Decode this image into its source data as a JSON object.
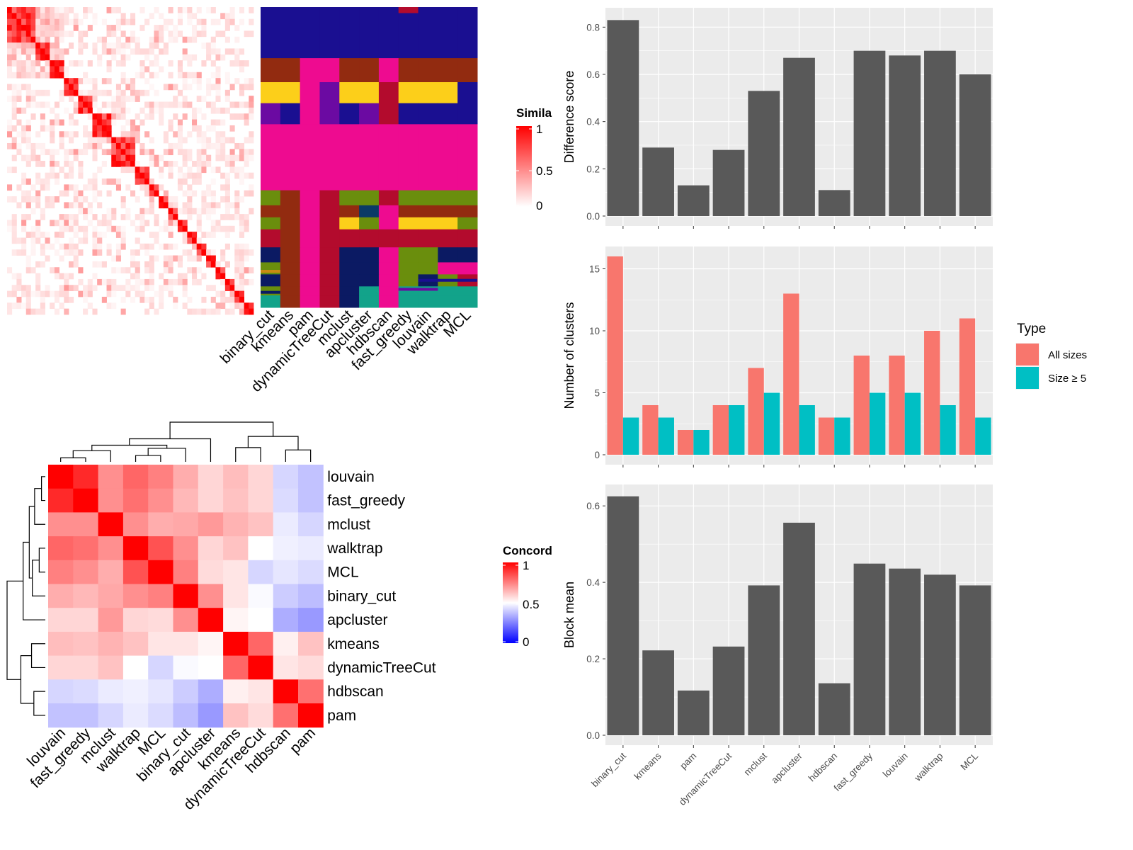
{
  "chart_data": [
    {
      "type": "heatmap",
      "name": "similarity-heatmap",
      "legend_title": "Simila",
      "legend_ticks": [
        "1",
        "0.5",
        "0"
      ],
      "scale": {
        "min": 0,
        "max": 1,
        "colors": [
          "#ffffff",
          "#ff0000"
        ]
      }
    },
    {
      "type": "heatmap",
      "name": "cluster-assignment-heatmap",
      "column_labels": [
        "binary_cut",
        "kmeans",
        "pam",
        "dynamicTreeCut",
        "mclust",
        "apcluster",
        "hdbscan",
        "fast_greedy",
        "louvain",
        "walktrap",
        "MCL"
      ]
    },
    {
      "type": "heatmap",
      "name": "concordance-heatmap",
      "legend_title": "Concord",
      "legend_ticks": [
        "1",
        "0.5",
        "0"
      ],
      "scale": {
        "min": 0,
        "max": 1,
        "colors": [
          "#0000ff",
          "#ffffff",
          "#ff0000"
        ]
      },
      "row_labels": [
        "louvain",
        "fast_greedy",
        "mclust",
        "walktrap",
        "MCL",
        "binary_cut",
        "apcluster",
        "kmeans",
        "dynamicTreeCut",
        "hdbscan",
        "pam"
      ],
      "column_labels": [
        "louvain",
        "fast_greedy",
        "mclust",
        "walktrap",
        "MCL",
        "binary_cut",
        "apcluster",
        "kmeans",
        "dynamicTreeCut",
        "hdbscan",
        "pam"
      ],
      "values": [
        [
          1.0,
          0.92,
          0.72,
          0.8,
          0.75,
          0.66,
          0.58,
          0.63,
          0.58,
          0.42,
          0.38
        ],
        [
          0.92,
          1.0,
          0.72,
          0.78,
          0.72,
          0.64,
          0.58,
          0.62,
          0.58,
          0.43,
          0.38
        ],
        [
          0.72,
          0.72,
          1.0,
          0.72,
          0.66,
          0.67,
          0.7,
          0.65,
          0.62,
          0.46,
          0.42
        ],
        [
          0.8,
          0.78,
          0.72,
          1.0,
          0.84,
          0.72,
          0.58,
          0.62,
          0.5,
          0.47,
          0.46
        ],
        [
          0.75,
          0.72,
          0.66,
          0.84,
          1.0,
          0.75,
          0.57,
          0.55,
          0.42,
          0.45,
          0.43
        ],
        [
          0.66,
          0.64,
          0.67,
          0.72,
          0.75,
          1.0,
          0.72,
          0.55,
          0.49,
          0.4,
          0.37
        ],
        [
          0.58,
          0.58,
          0.7,
          0.58,
          0.57,
          0.72,
          1.0,
          0.52,
          0.5,
          0.34,
          0.3
        ],
        [
          0.63,
          0.62,
          0.65,
          0.62,
          0.55,
          0.55,
          0.52,
          1.0,
          0.8,
          0.53,
          0.62
        ],
        [
          0.58,
          0.58,
          0.62,
          0.5,
          0.42,
          0.49,
          0.5,
          0.8,
          1.0,
          0.55,
          0.57
        ],
        [
          0.42,
          0.43,
          0.46,
          0.47,
          0.45,
          0.4,
          0.34,
          0.53,
          0.55,
          1.0,
          0.78
        ],
        [
          0.38,
          0.38,
          0.42,
          0.46,
          0.43,
          0.37,
          0.3,
          0.62,
          0.57,
          0.78,
          1.0
        ]
      ]
    },
    {
      "type": "bar",
      "name": "difference-score",
      "categories": [
        "binary_cut",
        "kmeans",
        "pam",
        "dynamicTreeCut",
        "mclust",
        "apcluster",
        "hdbscan",
        "fast_greedy",
        "louvain",
        "walktrap",
        "MCL"
      ],
      "values": [
        0.83,
        0.29,
        0.13,
        0.28,
        0.53,
        0.67,
        0.11,
        0.7,
        0.68,
        0.7,
        0.6
      ],
      "ylabel": "Difference score",
      "ylim": [
        0,
        0.84
      ],
      "yticks": [
        "0.0",
        "0.2",
        "0.4",
        "0.6",
        "0.8"
      ],
      "grid": true
    },
    {
      "type": "bar",
      "name": "number-of-clusters",
      "categories": [
        "binary_cut",
        "kmeans",
        "pam",
        "dynamicTreeCut",
        "mclust",
        "apcluster",
        "hdbscan",
        "fast_greedy",
        "louvain",
        "walktrap",
        "MCL"
      ],
      "series": [
        {
          "name": "All sizes",
          "color": "#f8766d",
          "values": [
            16,
            4,
            2,
            4,
            7,
            13,
            3,
            8,
            8,
            10,
            11
          ]
        },
        {
          "name": "Size ≥ 5",
          "color": "#00bfc4",
          "values": [
            3,
            3,
            2,
            4,
            5,
            4,
            3,
            5,
            5,
            4,
            3
          ]
        }
      ],
      "ylabel": "Number of clusters",
      "ylim": [
        0,
        16
      ],
      "yticks": [
        "0",
        "5",
        "10",
        "15"
      ],
      "legend_title": "Type",
      "legend_position": "right",
      "grid": true
    },
    {
      "type": "bar",
      "name": "block-mean",
      "categories": [
        "binary_cut",
        "kmeans",
        "pam",
        "dynamicTreeCut",
        "mclust",
        "apcluster",
        "hdbscan",
        "fast_greedy",
        "louvain",
        "walktrap",
        "MCL"
      ],
      "values": [
        0.625,
        0.222,
        0.117,
        0.232,
        0.392,
        0.556,
        0.136,
        0.449,
        0.436,
        0.42,
        0.392
      ],
      "ylabel": "Block mean",
      "ylim": [
        0,
        0.63
      ],
      "yticks": [
        "0.0",
        "0.2",
        "0.4",
        "0.6"
      ],
      "grid": true
    }
  ]
}
